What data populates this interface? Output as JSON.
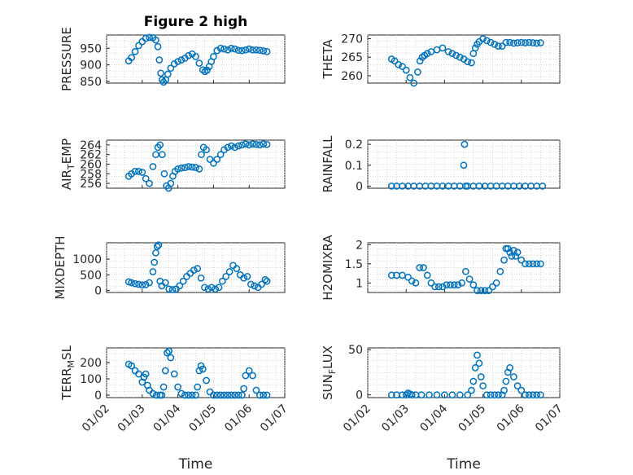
{
  "colors": {
    "marker": "#0072bd",
    "axis": "#262626",
    "grid": "#c8c8c8"
  },
  "figure_title": "Figure 2 high",
  "chart_data": [
    {
      "id": "pressure",
      "type": "scatter",
      "title": "Figure 2 high",
      "ylabel": "PRESSURE",
      "xlabel": "",
      "ylim": [
        845,
        990
      ],
      "yticks": [
        850,
        900,
        950
      ],
      "ytick_labels": [
        "850",
        "900",
        "950"
      ],
      "xlim": [
        0,
        5
      ],
      "xticks": [
        0,
        1,
        2,
        3,
        4,
        5
      ],
      "xtick_labels": [],
      "x": [
        0.62,
        0.7,
        0.8,
        0.9,
        1.0,
        1.1,
        1.2,
        1.3,
        1.38,
        1.44,
        1.48,
        1.52,
        1.56,
        1.6,
        1.66,
        1.72,
        1.8,
        1.9,
        2.0,
        2.1,
        2.2,
        2.3,
        2.4,
        2.5,
        2.6,
        2.7,
        2.76,
        2.82,
        2.88,
        2.94,
        3.0,
        3.1,
        3.2,
        3.3,
        3.4,
        3.5,
        3.6,
        3.7,
        3.8,
        3.9,
        4.0,
        4.1,
        4.2,
        4.3,
        4.4,
        4.5
      ],
      "values": [
        912,
        922,
        940,
        958,
        970,
        980,
        983,
        982,
        975,
        955,
        915,
        875,
        855,
        848,
        855,
        872,
        890,
        903,
        910,
        915,
        920,
        928,
        933,
        925,
        905,
        885,
        880,
        884,
        895,
        910,
        925,
        943,
        950,
        948,
        945,
        950,
        948,
        944,
        943,
        945,
        948,
        945,
        945,
        944,
        942,
        940
      ]
    },
    {
      "id": "theta",
      "type": "scatter",
      "ylabel": "THETA",
      "xlabel": "",
      "ylim": [
        258,
        271
      ],
      "yticks": [
        260,
        265,
        270
      ],
      "ytick_labels": [
        "260",
        "265",
        "270"
      ],
      "xlim": [
        0,
        5
      ],
      "xticks": [
        0,
        1,
        2,
        3,
        4,
        5
      ],
      "xtick_labels": [],
      "x": [
        0.62,
        0.7,
        0.8,
        0.9,
        1.0,
        1.1,
        1.2,
        1.3,
        1.36,
        1.42,
        1.48,
        1.55,
        1.65,
        1.8,
        1.95,
        2.1,
        2.2,
        2.3,
        2.4,
        2.5,
        2.6,
        2.7,
        2.75,
        2.8,
        2.85,
        2.9,
        3.0,
        3.1,
        3.2,
        3.3,
        3.4,
        3.5,
        3.6,
        3.7,
        3.8,
        3.9,
        4.0,
        4.1,
        4.2,
        4.3,
        4.4,
        4.5
      ],
      "values": [
        264.5,
        264,
        263,
        262.5,
        261.5,
        259.5,
        258,
        261,
        264,
        265,
        265.5,
        266,
        266.5,
        267,
        267.5,
        266.5,
        266,
        265.5,
        265,
        264.5,
        263.8,
        263.5,
        266,
        267.5,
        268.5,
        269.2,
        270,
        269.5,
        269,
        268.5,
        268,
        268,
        269,
        269,
        268.8,
        268.9,
        269,
        268.9,
        269,
        268.9,
        268.8,
        268.9
      ]
    },
    {
      "id": "air_temp",
      "type": "scatter",
      "ylabel": "AIR_TEMP",
      "ylabel_main": "AIR",
      "ylabel_sub": "T",
      "ylabel_tail": "EMP",
      "xlabel": "",
      "ylim": [
        255,
        265
      ],
      "yticks": [
        256,
        258,
        260,
        262,
        264
      ],
      "ytick_labels": [
        "256",
        "258",
        "260",
        "262",
        "264"
      ],
      "xlim": [
        0,
        5
      ],
      "xticks": [
        0,
        1,
        2,
        3,
        4,
        5
      ],
      "xtick_labels": [],
      "x": [
        0.62,
        0.7,
        0.8,
        0.9,
        1.0,
        1.1,
        1.2,
        1.3,
        1.38,
        1.44,
        1.5,
        1.56,
        1.62,
        1.68,
        1.74,
        1.8,
        1.86,
        1.92,
        2.0,
        2.1,
        2.2,
        2.3,
        2.4,
        2.5,
        2.6,
        2.66,
        2.72,
        2.8,
        2.9,
        3.0,
        3.1,
        3.2,
        3.3,
        3.4,
        3.5,
        3.6,
        3.7,
        3.8,
        3.9,
        4.0,
        4.1,
        4.2,
        4.3,
        4.4,
        4.5
      ],
      "values": [
        257.5,
        258,
        258.5,
        258.5,
        258.3,
        257,
        256,
        259.5,
        262,
        263.5,
        264,
        262,
        258,
        255.5,
        255,
        256,
        257.5,
        258.5,
        259,
        259.2,
        259.3,
        259.5,
        259.4,
        259.3,
        259,
        262,
        263.5,
        263,
        261,
        260.2,
        261,
        262,
        263,
        263.5,
        263.8,
        263.5,
        263.8,
        264,
        264.2,
        264,
        264.2,
        264.1,
        264,
        264.2,
        264.1
      ]
    },
    {
      "id": "rainfall",
      "type": "scatter",
      "ylabel": "RAINFALL",
      "xlabel": "",
      "ylim": [
        -0.01,
        0.22
      ],
      "yticks": [
        0,
        0.1,
        0.2
      ],
      "ytick_labels": [
        "0",
        "0.1",
        "0.2"
      ],
      "xlim": [
        0,
        5
      ],
      "xticks": [
        0,
        1,
        2,
        3,
        4,
        5
      ],
      "xtick_labels": [],
      "x": [
        0.62,
        0.75,
        0.9,
        1.05,
        1.2,
        1.35,
        1.5,
        1.65,
        1.8,
        1.95,
        2.1,
        2.25,
        2.4,
        2.5,
        2.52,
        2.55,
        2.6,
        2.75,
        2.9,
        3.05,
        3.2,
        3.35,
        3.5,
        3.65,
        3.8,
        3.95,
        4.1,
        4.25,
        4.4,
        4.55
      ],
      "values": [
        0,
        0,
        0,
        0,
        0,
        0,
        0,
        0,
        0,
        0,
        0,
        0,
        0,
        0.1,
        0.2,
        0,
        0,
        0,
        0,
        0,
        0,
        0,
        0,
        0,
        0,
        0,
        0,
        0,
        0,
        0
      ]
    },
    {
      "id": "mixdepth",
      "type": "scatter",
      "ylabel": "MIXDEPTH",
      "xlabel": "",
      "ylim": [
        -60,
        1520
      ],
      "yticks": [
        0,
        500,
        1000
      ],
      "ytick_labels": [
        "0",
        "500",
        "1000"
      ],
      "xlim": [
        0,
        5
      ],
      "xticks": [
        0,
        1,
        2,
        3,
        4,
        5
      ],
      "xtick_labels": [],
      "x": [
        0.62,
        0.7,
        0.8,
        0.9,
        1.0,
        1.1,
        1.2,
        1.3,
        1.34,
        1.38,
        1.42,
        1.46,
        1.5,
        1.55,
        1.65,
        1.75,
        1.85,
        1.95,
        2.05,
        2.15,
        2.25,
        2.35,
        2.45,
        2.55,
        2.65,
        2.75,
        2.85,
        2.95,
        3.05,
        3.15,
        3.25,
        3.35,
        3.45,
        3.55,
        3.65,
        3.75,
        3.85,
        3.95,
        4.05,
        4.15,
        4.25,
        4.35,
        4.45,
        4.5
      ],
      "values": [
        280,
        250,
        220,
        200,
        180,
        190,
        250,
        600,
        900,
        1200,
        1400,
        1450,
        300,
        150,
        250,
        50,
        30,
        50,
        150,
        300,
        450,
        550,
        650,
        700,
        400,
        100,
        50,
        100,
        50,
        100,
        300,
        450,
        600,
        800,
        700,
        500,
        400,
        450,
        200,
        150,
        100,
        200,
        350,
        300
      ]
    },
    {
      "id": "h2omixra",
      "type": "scatter",
      "ylabel": "H2OMIXRA",
      "xlabel": "",
      "ylim": [
        0.75,
        2.05
      ],
      "yticks": [
        1,
        1.5,
        2
      ],
      "ytick_labels": [
        "1",
        "1.5",
        "2"
      ],
      "xlim": [
        0,
        5
      ],
      "xticks": [
        0,
        1,
        2,
        3,
        4,
        5
      ],
      "xtick_labels": [],
      "x": [
        0.62,
        0.75,
        0.9,
        1.05,
        1.15,
        1.25,
        1.35,
        1.45,
        1.55,
        1.65,
        1.75,
        1.85,
        1.95,
        2.05,
        2.15,
        2.25,
        2.35,
        2.45,
        2.55,
        2.65,
        2.75,
        2.85,
        2.95,
        3.05,
        3.15,
        3.25,
        3.35,
        3.45,
        3.55,
        3.6,
        3.65,
        3.7,
        3.75,
        3.8,
        3.85,
        3.9,
        4.0,
        4.1,
        4.2,
        4.3,
        4.4,
        4.5
      ],
      "values": [
        1.2,
        1.2,
        1.2,
        1.15,
        1.05,
        1.0,
        1.4,
        1.4,
        1.2,
        1.0,
        0.9,
        0.9,
        0.9,
        0.95,
        0.95,
        0.95,
        0.95,
        1.0,
        1.3,
        1.1,
        0.95,
        0.8,
        0.8,
        0.8,
        0.8,
        0.9,
        1.0,
        1.3,
        1.6,
        1.9,
        1.9,
        1.8,
        1.7,
        1.85,
        1.7,
        1.8,
        1.6,
        1.5,
        1.5,
        1.5,
        1.5,
        1.5
      ]
    },
    {
      "id": "terr_msl",
      "type": "scatter",
      "ylabel": "TERR_MSL",
      "ylabel_main": "TERR",
      "ylabel_sub": "M",
      "ylabel_tail": "SL",
      "xlabel": "Time",
      "ylim": [
        -15,
        290
      ],
      "yticks": [
        0,
        100,
        200
      ],
      "ytick_labels": [
        "0",
        "100",
        "200"
      ],
      "xlim": [
        0,
        5
      ],
      "xticks": [
        0,
        1,
        2,
        3,
        4,
        5
      ],
      "xtick_labels": [
        "01/02",
        "01/03",
        "01/04",
        "01/05",
        "01/06",
        "01/07"
      ],
      "x": [
        0.62,
        0.7,
        0.8,
        0.9,
        1.0,
        1.05,
        1.1,
        1.15,
        1.2,
        1.3,
        1.4,
        1.5,
        1.55,
        1.6,
        1.65,
        1.7,
        1.75,
        1.8,
        1.9,
        2.0,
        2.1,
        2.2,
        2.3,
        2.4,
        2.5,
        2.55,
        2.6,
        2.65,
        2.7,
        2.8,
        2.9,
        3.0,
        3.1,
        3.2,
        3.3,
        3.4,
        3.5,
        3.6,
        3.7,
        3.8,
        3.85,
        3.9,
        4.0,
        4.1,
        4.2,
        4.3,
        4.4,
        4.5
      ],
      "values": [
        190,
        180,
        150,
        130,
        80,
        110,
        130,
        60,
        30,
        10,
        0,
        0,
        0,
        50,
        150,
        260,
        270,
        230,
        130,
        50,
        10,
        0,
        0,
        0,
        0,
        50,
        150,
        180,
        160,
        90,
        20,
        0,
        0,
        0,
        0,
        0,
        0,
        0,
        0,
        0,
        40,
        120,
        150,
        120,
        30,
        0,
        0,
        0
      ]
    },
    {
      "id": "sun_flux",
      "type": "scatter",
      "ylabel": "SUN_FLUX",
      "ylabel_main": "SUN",
      "ylabel_sub": "F",
      "ylabel_tail": "LUX",
      "xlabel": "Time",
      "ylim": [
        -3,
        52
      ],
      "yticks": [
        0,
        50
      ],
      "ytick_labels": [
        "0",
        "50"
      ],
      "xlim": [
        0,
        5
      ],
      "xticks": [
        0,
        1,
        2,
        3,
        4,
        5
      ],
      "xtick_labels": [
        "01/02",
        "01/03",
        "01/04",
        "01/05",
        "01/06",
        "01/07"
      ],
      "x": [
        0.62,
        0.75,
        0.9,
        1.0,
        1.05,
        1.1,
        1.15,
        1.25,
        1.4,
        1.6,
        1.8,
        2.0,
        2.2,
        2.4,
        2.6,
        2.7,
        2.75,
        2.8,
        2.85,
        2.9,
        2.95,
        3.0,
        3.1,
        3.2,
        3.3,
        3.4,
        3.5,
        3.55,
        3.6,
        3.65,
        3.7,
        3.8,
        3.9,
        4.0,
        4.1,
        4.2,
        4.3,
        4.4,
        4.5
      ],
      "values": [
        0,
        0,
        0,
        0,
        2,
        1,
        0,
        0,
        0,
        0,
        0,
        0,
        0,
        0,
        0,
        5,
        15,
        30,
        44,
        35,
        20,
        10,
        0,
        0,
        0,
        0,
        0,
        5,
        15,
        25,
        30,
        20,
        10,
        5,
        0,
        0,
        0,
        0,
        0
      ]
    }
  ]
}
